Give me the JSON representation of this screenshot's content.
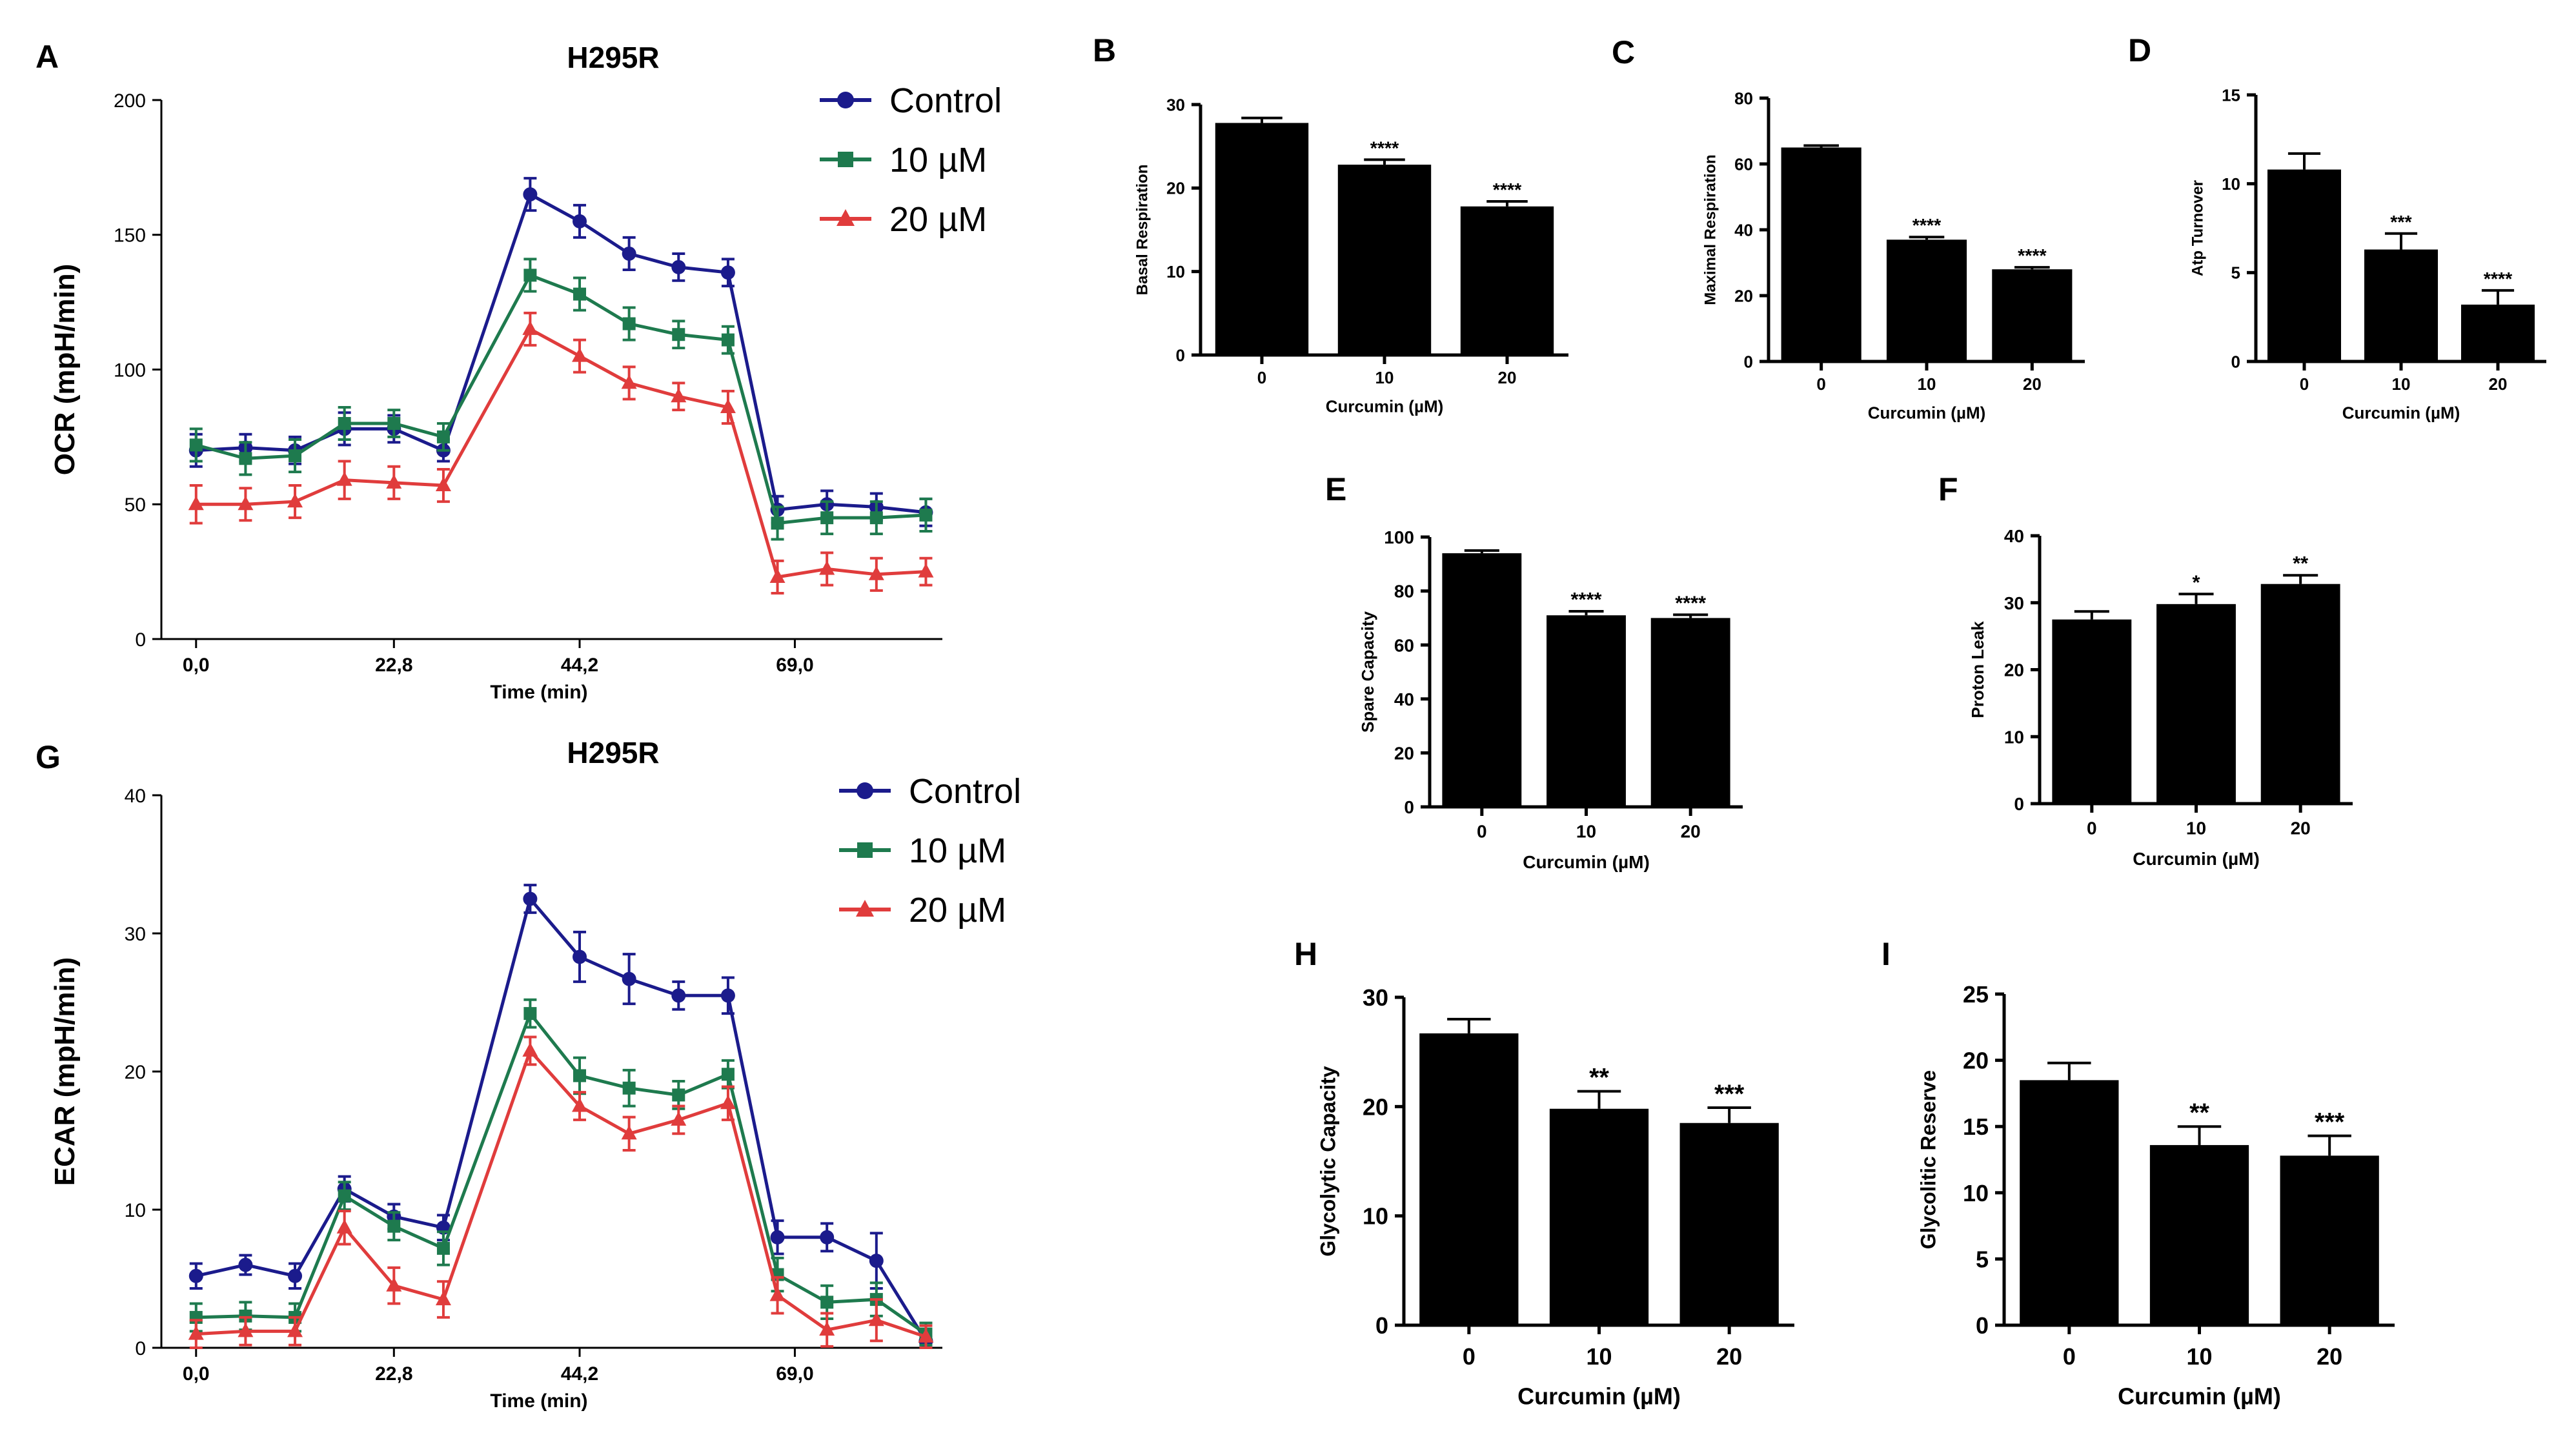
{
  "colors": {
    "control": "#1b1b8c",
    "uM10": "#1e7a4e",
    "uM20": "#e03c3c",
    "bar": "#000000",
    "axis": "#000000"
  },
  "chart_data": [
    {
      "id": "A",
      "panel_label": "A",
      "type": "line",
      "title": "H295R",
      "xlabel": "Time (min)",
      "ylabel": "OCR (mpH/min)",
      "xlim": [
        -4,
        86
      ],
      "ylim": [
        0,
        200
      ],
      "xticks": [
        0,
        22.8,
        44.2,
        69.0
      ],
      "xtick_labels": [
        "0,0",
        "22,8",
        "44,2",
        "69,0"
      ],
      "yticks": [
        0,
        50,
        100,
        150,
        200
      ],
      "ytick_labels": [
        "0",
        "50",
        "100",
        "150",
        "200"
      ],
      "x": [
        0,
        5.7,
        11.4,
        17.1,
        22.8,
        28.5,
        38.5,
        44.2,
        49.9,
        55.6,
        61.3,
        67.0,
        72.7,
        78.4,
        84.1
      ],
      "legend": [
        "Control",
        "10 µM",
        "20 µM"
      ],
      "series": [
        {
          "name": "Control",
          "color": "#1b1b8c",
          "marker": "circle",
          "values": [
            70,
            71,
            70,
            78,
            78,
            70,
            165,
            155,
            143,
            138,
            136,
            48,
            50,
            49,
            47
          ],
          "errors": [
            6,
            5,
            5,
            6,
            5,
            4,
            6,
            6,
            6,
            5,
            5,
            5,
            5,
            5,
            5
          ]
        },
        {
          "name": "10 µM",
          "color": "#1e7a4e",
          "marker": "square",
          "values": [
            72,
            67,
            68,
            80,
            80,
            75,
            135,
            128,
            117,
            113,
            111,
            43,
            45,
            45,
            46
          ],
          "errors": [
            6,
            6,
            6,
            6,
            5,
            5,
            6,
            6,
            6,
            5,
            5,
            6,
            6,
            6,
            6
          ]
        },
        {
          "name": "20 µM",
          "color": "#e03c3c",
          "marker": "triangle",
          "values": [
            50,
            50,
            51,
            59,
            58,
            57,
            115,
            105,
            95,
            90,
            86,
            23,
            26,
            24,
            25
          ],
          "errors": [
            7,
            6,
            6,
            7,
            6,
            6,
            6,
            6,
            6,
            5,
            6,
            6,
            6,
            6,
            5
          ]
        }
      ]
    },
    {
      "id": "G",
      "panel_label": "G",
      "type": "line",
      "title": "H295R",
      "xlabel": "Time (min)",
      "ylabel": "ECAR (mpH/min)",
      "xlim": [
        -4,
        86
      ],
      "ylim": [
        0,
        40
      ],
      "xticks": [
        0,
        22.8,
        44.2,
        69.0
      ],
      "xtick_labels": [
        "0,0",
        "22,8",
        "44,2",
        "69,0"
      ],
      "yticks": [
        0,
        10,
        20,
        30,
        40
      ],
      "ytick_labels": [
        "0",
        "10",
        "20",
        "30",
        "40"
      ],
      "x": [
        0,
        5.7,
        11.4,
        17.1,
        22.8,
        28.5,
        38.5,
        44.2,
        49.9,
        55.6,
        61.3,
        67.0,
        72.7,
        78.4,
        84.1
      ],
      "legend": [
        "Control",
        "10 µM",
        "20 µM"
      ],
      "series": [
        {
          "name": "Control",
          "color": "#1b1b8c",
          "marker": "circle",
          "values": [
            5.2,
            6.0,
            5.2,
            11.5,
            9.5,
            8.7,
            32.5,
            28.3,
            26.7,
            25.5,
            25.5,
            8.0,
            8.0,
            6.3,
            0.5
          ],
          "errors": [
            0.9,
            0.7,
            0.9,
            0.9,
            0.9,
            0.9,
            1.0,
            1.8,
            1.8,
            1.0,
            1.3,
            1.2,
            1.0,
            2.0,
            0.3
          ]
        },
        {
          "name": "10 µM",
          "color": "#1e7a4e",
          "marker": "square",
          "values": [
            2.2,
            2.3,
            2.2,
            11.0,
            8.8,
            7.2,
            24.2,
            19.7,
            18.8,
            18.3,
            19.8,
            5.3,
            3.3,
            3.5,
            1.0
          ],
          "errors": [
            1.0,
            1.0,
            1.0,
            1.0,
            1.0,
            1.2,
            1.0,
            1.3,
            1.3,
            1.0,
            1.0,
            1.2,
            1.2,
            1.2,
            0.8
          ]
        },
        {
          "name": "20 µM",
          "color": "#e03c3c",
          "marker": "triangle",
          "values": [
            1.0,
            1.2,
            1.2,
            8.7,
            4.5,
            3.5,
            21.5,
            17.5,
            15.5,
            16.5,
            17.7,
            3.8,
            1.3,
            2.0,
            0.8
          ],
          "errors": [
            1.0,
            1.0,
            1.0,
            1.2,
            1.3,
            1.3,
            1.0,
            1.0,
            1.2,
            1.0,
            1.2,
            1.3,
            1.2,
            1.5,
            0.8
          ]
        }
      ]
    },
    {
      "id": "B",
      "panel_label": "B",
      "type": "bar",
      "ylabel": "Basal Respiration",
      "xlabel": "Curcumin (µM)",
      "categories": [
        "0",
        "10",
        "20"
      ],
      "values": [
        27.8,
        22.8,
        17.8
      ],
      "errors": [
        0.6,
        0.6,
        0.6
      ],
      "significance": [
        "",
        "****",
        "****"
      ],
      "ylim": [
        0,
        30
      ],
      "yticks": [
        0,
        10,
        20,
        30
      ]
    },
    {
      "id": "C",
      "panel_label": "C",
      "type": "bar",
      "ylabel": "Maximal Respiration",
      "xlabel": "Curcumin (µM)",
      "categories": [
        "0",
        "10",
        "20"
      ],
      "values": [
        65,
        37,
        28
      ],
      "errors": [
        0.6,
        0.8,
        0.6
      ],
      "significance": [
        "",
        "****",
        "****"
      ],
      "ylim": [
        0,
        80
      ],
      "yticks": [
        0,
        20,
        40,
        60,
        80
      ]
    },
    {
      "id": "D",
      "panel_label": "D",
      "type": "bar",
      "ylabel": "Atp Turnover",
      "xlabel": "Curcumin (µM)",
      "categories": [
        "0",
        "10",
        "20"
      ],
      "values": [
        10.8,
        6.3,
        3.2
      ],
      "errors": [
        0.9,
        0.9,
        0.8
      ],
      "significance": [
        "",
        "***",
        "****"
      ],
      "ylim": [
        0,
        15
      ],
      "yticks": [
        0,
        5,
        10,
        15
      ]
    },
    {
      "id": "E",
      "panel_label": "E",
      "type": "bar",
      "ylabel": "Spare Capacity",
      "xlabel": "Curcumin (µM)",
      "categories": [
        "0",
        "10",
        "20"
      ],
      "values": [
        94,
        71,
        70
      ],
      "errors": [
        1,
        1.5,
        1.2
      ],
      "significance": [
        "",
        "****",
        "****"
      ],
      "ylim": [
        0,
        100
      ],
      "yticks": [
        0,
        20,
        40,
        60,
        80,
        100
      ]
    },
    {
      "id": "F",
      "panel_label": "F",
      "type": "bar",
      "ylabel": "Proton Leak",
      "xlabel": "Curcumin (µM)",
      "categories": [
        "0",
        "10",
        "20"
      ],
      "values": [
        27.5,
        29.8,
        32.8
      ],
      "errors": [
        1.2,
        1.5,
        1.3
      ],
      "significance": [
        "",
        "*",
        "**"
      ],
      "ylim": [
        0,
        40
      ],
      "yticks": [
        0,
        10,
        20,
        30,
        40
      ]
    },
    {
      "id": "H",
      "panel_label": "H",
      "type": "bar",
      "ylabel": "Glycolytic Capacity",
      "xlabel": "Curcumin (µM)",
      "categories": [
        "0",
        "10",
        "20"
      ],
      "values": [
        26.7,
        19.8,
        18.5
      ],
      "errors": [
        1.3,
        1.6,
        1.4
      ],
      "significance": [
        "",
        "**",
        "***"
      ],
      "ylim": [
        0,
        30
      ],
      "yticks": [
        0,
        10,
        20,
        30
      ]
    },
    {
      "id": "I",
      "panel_label": "I",
      "type": "bar",
      "ylabel": "Glycolitic Reserve",
      "xlabel": "Curcumin (µM)",
      "categories": [
        "0",
        "10",
        "20"
      ],
      "values": [
        18.5,
        13.6,
        12.8
      ],
      "errors": [
        1.3,
        1.4,
        1.5
      ],
      "significance": [
        "",
        "**",
        "***"
      ],
      "ylim": [
        0,
        25
      ],
      "yticks": [
        0,
        5,
        10,
        15,
        20,
        25
      ]
    }
  ]
}
